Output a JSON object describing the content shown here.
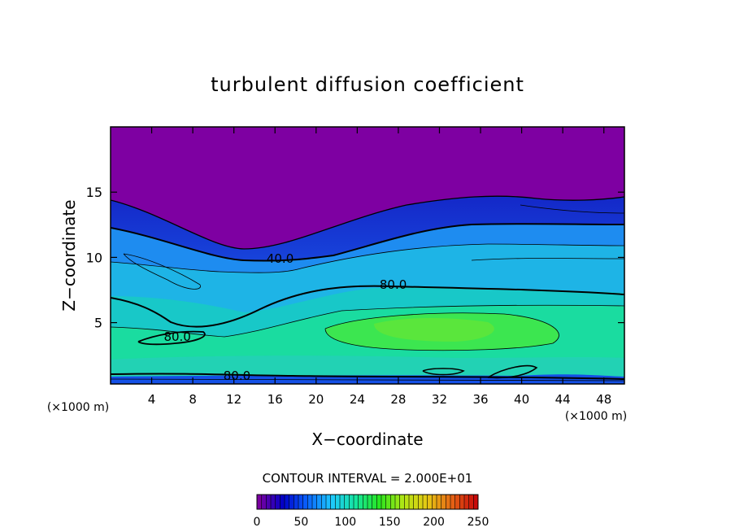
{
  "chart_data": {
    "type": "heatmap",
    "title": "turbulent diffusion coefficient",
    "xlabel": "X−coordinate",
    "ylabel": "Z−coordinate",
    "x_unit_left": "(×1000 m)",
    "x_unit_right": "(×1000 m)",
    "xlim": [
      0,
      50
    ],
    "ylim": [
      0.3,
      20
    ],
    "x_ticks": [
      4,
      8,
      12,
      16,
      20,
      24,
      28,
      32,
      36,
      40,
      44,
      48
    ],
    "y_ticks": [
      5,
      10,
      15
    ],
    "contour_interval_text": "CONTOUR INTERVAL = 2.000E+01",
    "contour_interval": 20,
    "contour_labels": [
      {
        "x": 16.5,
        "y": 9.6,
        "text": "40.0"
      },
      {
        "x": 27.5,
        "y": 7.6,
        "text": "80.0"
      },
      {
        "x": 6.5,
        "y": 3.6,
        "text": "80.0"
      },
      {
        "x": 12.3,
        "y": 0.6,
        "text": "80.0"
      }
    ],
    "colorbar": {
      "min": 0,
      "max": 250,
      "ticks": [
        0,
        50,
        100,
        150,
        200,
        250
      ],
      "colors": [
        "#7a00a0",
        "#0000c8",
        "#0a64ff",
        "#1ec8ff",
        "#14e6a0",
        "#28e61e",
        "#b4e614",
        "#e6c814",
        "#e66414",
        "#c80a0a"
      ]
    },
    "field_levels": [
      {
        "name": "top-plateau",
        "value": 0
      },
      {
        "name": "band-20",
        "value": 20
      },
      {
        "name": "band-40",
        "value": 40
      },
      {
        "name": "band-60",
        "value": 60
      },
      {
        "name": "band-80",
        "value": 80
      },
      {
        "name": "band-100",
        "value": 100
      },
      {
        "name": "band-120",
        "value": 120
      }
    ]
  }
}
